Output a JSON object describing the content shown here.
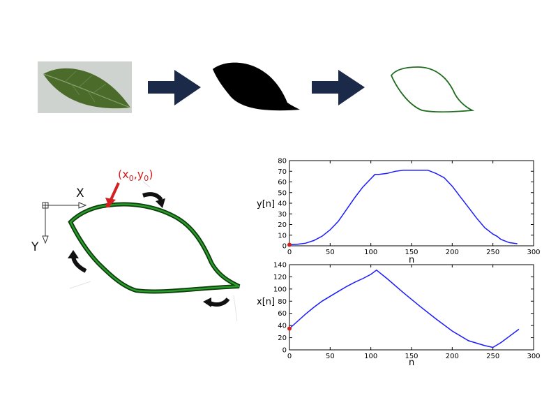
{
  "pipeline": {
    "stages": [
      "leaf-photo",
      "binary-silhouette",
      "contour-outline"
    ],
    "colors": {
      "arrow": "#1c2a4a",
      "contour": "#1f6b1f",
      "leaf": "#4a6b2a",
      "background": "#cfd3cf"
    }
  },
  "contour_diagram": {
    "x_axis_label": "X",
    "y_axis_label": "Y",
    "start_point_label_main": "(x",
    "start_point_sub0": "0",
    "start_point_comma": ",y",
    "start_point_sub1": "0",
    "start_point_close": ")",
    "start_color": "#d32020",
    "direction_icons": [
      "curved-arrow-clockwise-icon",
      "curved-arrow-clockwise-icon",
      "curved-arrow-clockwise-icon"
    ]
  },
  "chart_data": [
    {
      "type": "line",
      "ylabel": "y[n]",
      "xlabel": "n",
      "xlim": [
        0,
        300
      ],
      "ylim": [
        0,
        80
      ],
      "xticks": [
        "0",
        "50",
        "100",
        "150",
        "200",
        "250",
        "300"
      ],
      "yticks": [
        "0",
        "10",
        "20",
        "30",
        "40",
        "50",
        "60",
        "70",
        "80"
      ],
      "grid": false,
      "color": "#1a1aff",
      "marker_color": "#d32020",
      "x": [
        0,
        10,
        20,
        30,
        40,
        50,
        60,
        70,
        80,
        90,
        100,
        105,
        110,
        120,
        130,
        140,
        150,
        160,
        170,
        180,
        190,
        200,
        210,
        220,
        230,
        240,
        250,
        255,
        260,
        270,
        280
      ],
      "y": [
        1,
        1.5,
        2.5,
        5,
        9,
        15,
        23,
        34,
        45,
        55,
        63,
        67,
        67,
        68,
        70,
        71,
        71,
        71,
        71,
        68,
        64,
        56,
        46,
        36,
        26,
        17,
        11,
        9,
        6,
        3,
        2
      ]
    },
    {
      "type": "line",
      "ylabel": "x[n]",
      "xlabel": "n",
      "xlim": [
        0,
        300
      ],
      "ylim": [
        0,
        140
      ],
      "xticks": [
        "0",
        "50",
        "100",
        "150",
        "200",
        "250",
        "300"
      ],
      "yticks": [
        "0",
        "20",
        "40",
        "60",
        "80",
        "100",
        "120",
        "140"
      ],
      "grid": false,
      "color": "#1a1aff",
      "marker_color": "#d32020",
      "x": [
        0,
        10,
        20,
        30,
        40,
        50,
        60,
        70,
        80,
        90,
        100,
        107,
        120,
        140,
        160,
        180,
        200,
        220,
        240,
        250,
        260,
        270,
        282
      ],
      "y": [
        35,
        47,
        59,
        70,
        80,
        88,
        96,
        104,
        111,
        117,
        124,
        131,
        117,
        94,
        72,
        51,
        31,
        15,
        7,
        4,
        12,
        22,
        34
      ]
    }
  ]
}
